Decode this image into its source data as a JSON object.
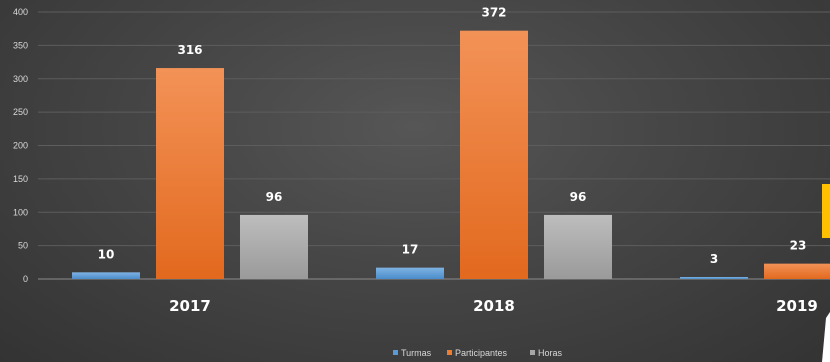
{
  "chart_data": {
    "type": "bar",
    "title": "",
    "xlabel": "",
    "ylabel": "",
    "ylim": [
      0,
      400
    ],
    "yticks": [
      0,
      50,
      100,
      150,
      200,
      250,
      300,
      350,
      400
    ],
    "grid": true,
    "legend_position": "bottom",
    "categories": [
      "2017",
      "2018",
      "2019"
    ],
    "series": [
      {
        "name": "Turmas",
        "values": [
          10,
          17,
          3
        ],
        "color": "#5b9bd5"
      },
      {
        "name": "Participantes",
        "values": [
          316,
          372,
          23
        ],
        "color": "#ed7d31"
      },
      {
        "name": "Horas",
        "values": [
          96,
          96,
          null
        ],
        "color": "#a5a5a5"
      }
    ]
  }
}
